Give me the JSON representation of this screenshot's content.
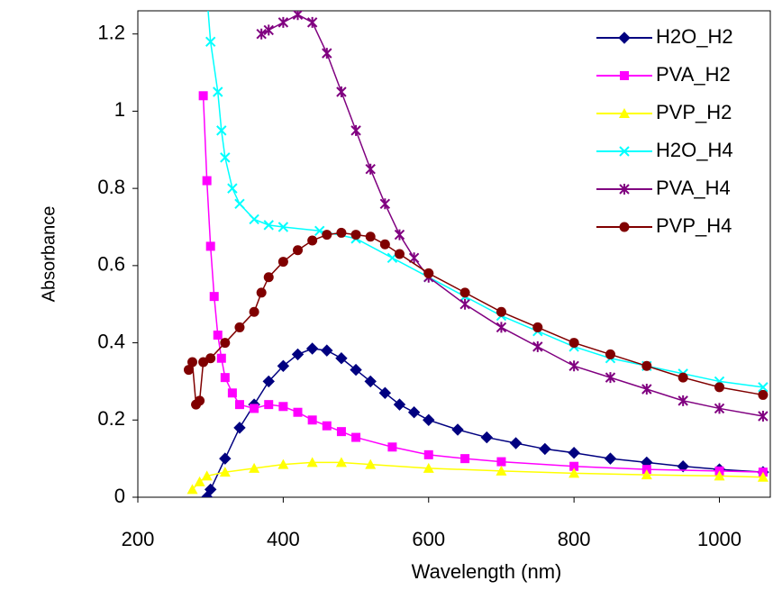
{
  "chart_data": {
    "type": "line",
    "x_label": "Wavelength (nm)",
    "y_label": "Absorbance",
    "xlim": [
      200,
      1070
    ],
    "xticks": [
      200,
      400,
      600,
      800,
      1000
    ],
    "ylim": [
      0,
      1.26
    ],
    "yticks": [
      0,
      0.2,
      0.4,
      0.6,
      0.8,
      1,
      1.2
    ],
    "legend": "right",
    "series": [
      {
        "name": "H2O_H2",
        "color": "#000080",
        "marker": "diamond",
        "x": [
          295,
          300,
          320,
          340,
          360,
          380,
          400,
          420,
          440,
          460,
          480,
          500,
          520,
          540,
          560,
          580,
          600,
          640,
          680,
          720,
          760,
          800,
          850,
          900,
          950,
          1000,
          1060
        ],
        "values": [
          0,
          0.02,
          0.1,
          0.18,
          0.24,
          0.3,
          0.34,
          0.37,
          0.385,
          0.38,
          0.36,
          0.33,
          0.3,
          0.27,
          0.24,
          0.22,
          0.2,
          0.175,
          0.155,
          0.14,
          0.125,
          0.115,
          0.1,
          0.09,
          0.08,
          0.072,
          0.065
        ]
      },
      {
        "name": "PVA_H2",
        "color": "#FF00FF",
        "marker": "square",
        "x": [
          290,
          295,
          300,
          305,
          310,
          315,
          320,
          330,
          340,
          360,
          380,
          400,
          420,
          440,
          460,
          480,
          500,
          550,
          600,
          650,
          700,
          800,
          900,
          1000,
          1060
        ],
        "values": [
          1.04,
          0.82,
          0.65,
          0.52,
          0.42,
          0.36,
          0.31,
          0.27,
          0.24,
          0.23,
          0.24,
          0.235,
          0.22,
          0.2,
          0.185,
          0.17,
          0.155,
          0.13,
          0.11,
          0.1,
          0.092,
          0.08,
          0.072,
          0.068,
          0.065
        ]
      },
      {
        "name": "PVP_H2",
        "color": "#FFFF00",
        "marker": "triangle",
        "x": [
          275,
          285,
          295,
          320,
          360,
          400,
          440,
          480,
          520,
          600,
          700,
          800,
          900,
          1000,
          1060
        ],
        "values": [
          0.02,
          0.04,
          0.055,
          0.065,
          0.075,
          0.085,
          0.09,
          0.09,
          0.085,
          0.075,
          0.068,
          0.062,
          0.058,
          0.055,
          0.052
        ]
      },
      {
        "name": "H2O_H4",
        "color": "#00FFFF",
        "marker": "x",
        "x": [
          295,
          300,
          310,
          315,
          320,
          330,
          340,
          360,
          380,
          400,
          450,
          500,
          550,
          600,
          650,
          700,
          750,
          800,
          850,
          900,
          950,
          1000,
          1060
        ],
        "values": [
          1.3,
          1.18,
          1.05,
          0.95,
          0.88,
          0.8,
          0.76,
          0.72,
          0.705,
          0.7,
          0.69,
          0.67,
          0.62,
          0.57,
          0.52,
          0.47,
          0.43,
          0.39,
          0.36,
          0.34,
          0.32,
          0.3,
          0.285
        ]
      },
      {
        "name": "PVA_H4",
        "color": "#800080",
        "marker": "star",
        "x": [
          370,
          380,
          400,
          420,
          440,
          460,
          480,
          500,
          520,
          540,
          560,
          580,
          600,
          650,
          700,
          750,
          800,
          850,
          900,
          950,
          1000,
          1060
        ],
        "values": [
          1.2,
          1.21,
          1.23,
          1.25,
          1.23,
          1.15,
          1.05,
          0.95,
          0.85,
          0.76,
          0.68,
          0.62,
          0.57,
          0.5,
          0.44,
          0.39,
          0.34,
          0.31,
          0.28,
          0.25,
          0.23,
          0.21
        ]
      },
      {
        "name": "PVP_H4",
        "color": "#800000",
        "marker": "circle",
        "x": [
          270,
          275,
          280,
          285,
          290,
          300,
          320,
          340,
          360,
          370,
          380,
          400,
          420,
          440,
          460,
          480,
          500,
          520,
          540,
          560,
          600,
          650,
          700,
          750,
          800,
          850,
          900,
          950,
          1000,
          1060
        ],
        "values": [
          0.33,
          0.35,
          0.24,
          0.25,
          0.35,
          0.36,
          0.4,
          0.44,
          0.48,
          0.53,
          0.57,
          0.61,
          0.64,
          0.665,
          0.68,
          0.685,
          0.68,
          0.675,
          0.655,
          0.63,
          0.58,
          0.53,
          0.48,
          0.44,
          0.4,
          0.37,
          0.34,
          0.31,
          0.285,
          0.265
        ]
      }
    ]
  }
}
